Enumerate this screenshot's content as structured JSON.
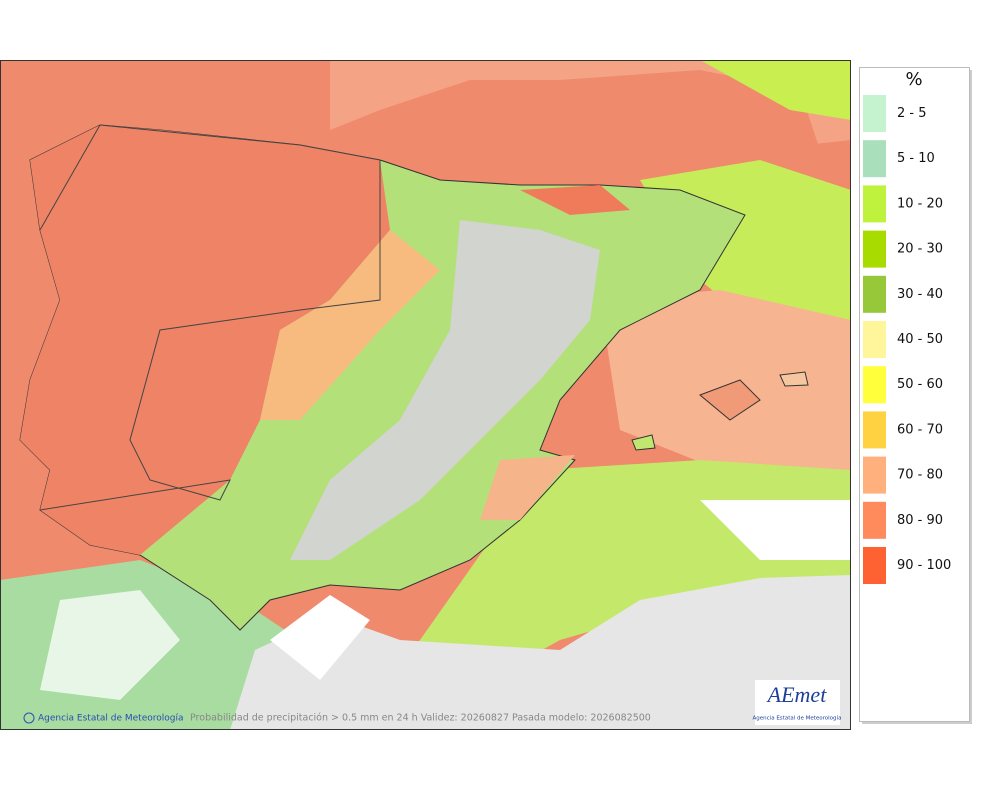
{
  "legend": {
    "title": "%",
    "items": [
      {
        "label": "2 - 5",
        "color": "#c6f3cf"
      },
      {
        "label": "5 - 10",
        "color": "#a9dfba"
      },
      {
        "label": "10 - 20",
        "color": "#bff23c"
      },
      {
        "label": "20 - 30",
        "color": "#a8dc00"
      },
      {
        "label": "30 - 40",
        "color": "#96c83a"
      },
      {
        "label": "40 - 50",
        "color": "#fff59a"
      },
      {
        "label": "50 - 60",
        "color": "#ffff3c"
      },
      {
        "label": "60 - 70",
        "color": "#ffd242"
      },
      {
        "label": "70 - 80",
        "color": "#ffb07c"
      },
      {
        "label": "80 - 90",
        "color": "#ff8a5c"
      },
      {
        "label": "90 - 100",
        "color": "#ff6232"
      }
    ]
  },
  "footer": {
    "agency": "Agencia Estatal de Meteorología",
    "caption": "Probabilidad de precipitación > 0.5 mm en 24 h Validez: 20260827 Pasada modelo: 2026082500"
  },
  "logo": {
    "name": "AEmet",
    "subtitle": "Agencia Estatal de Meteorología"
  }
}
